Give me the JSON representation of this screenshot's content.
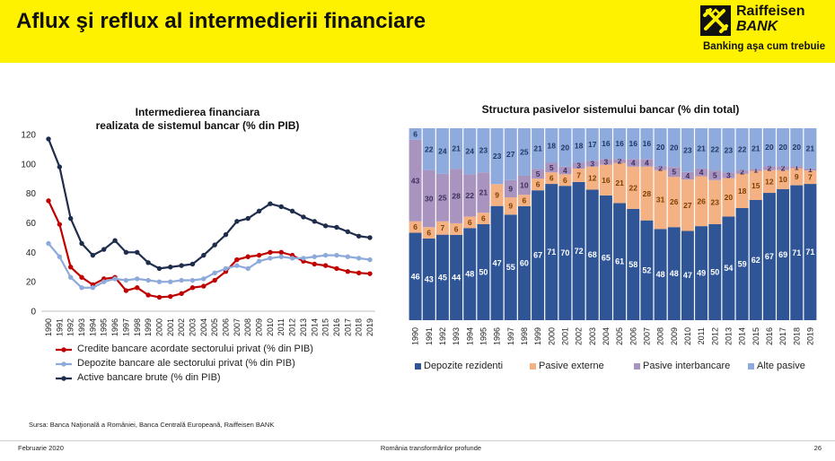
{
  "header": {
    "title": "Aflux şi reflux al intermedierii financiare",
    "bank_name_line1": "Raiffeisen",
    "bank_name_line2": "BANK",
    "tagline": "Banking aşa cum trebuie"
  },
  "colors": {
    "header_bg": "#fff200",
    "line_red": "#c00000",
    "line_light_blue": "#8eaadb",
    "line_dark_navy": "#1f2d4c",
    "bar_deposits": "#2f5597",
    "bar_external": "#f4b183",
    "bar_interbank": "#a993bf",
    "bar_other": "#8faadc"
  },
  "chart_data": [
    {
      "type": "line",
      "title": "Intermedierea financiara realizata de sistemul bancar (% din PIB)",
      "title_line1": "Intermedierea financiara",
      "title_line2": "realizata de sistemul bancar (% din PIB)",
      "x": [
        "1990",
        "1991",
        "1992",
        "1993",
        "1994",
        "1995",
        "1996",
        "1997",
        "1998",
        "1999",
        "2000",
        "2001",
        "2002",
        "2003",
        "2004",
        "2005",
        "2006",
        "2007",
        "2008",
        "2009",
        "2010",
        "2011",
        "2012",
        "2013",
        "2014",
        "2015",
        "2016",
        "2017",
        "2018",
        "2019"
      ],
      "ylim": [
        0,
        120
      ],
      "yticks": [
        "0",
        "20",
        "40",
        "60",
        "80",
        "100",
        "120"
      ],
      "grid": false,
      "legend_position": "bottom",
      "series": [
        {
          "name": "Credite bancare acordate sectorului privat (% din PIB)",
          "color": "#c00000",
          "values": [
            75,
            59,
            30,
            23,
            18,
            22,
            23,
            14,
            16,
            11,
            9.5,
            10,
            12,
            16,
            17,
            21,
            27,
            35,
            37,
            38,
            40,
            40,
            38,
            34,
            32,
            31,
            29,
            27,
            26,
            25.5
          ]
        },
        {
          "name": "Depozite bancare ale sectorului privat (% din PIB)",
          "color": "#8eaadb",
          "values": [
            46,
            37,
            23,
            16,
            16,
            20,
            22,
            21,
            22,
            21,
            20,
            20,
            21,
            21,
            22,
            26,
            29,
            31,
            29,
            34,
            36,
            37,
            36,
            36,
            37,
            38,
            38,
            37,
            36,
            35
          ]
        },
        {
          "name": "Active bancare brute (% din PIB)",
          "color": "#1f2d4c",
          "values": [
            117,
            98,
            63,
            46,
            38,
            42,
            48,
            40,
            40,
            33,
            29,
            30,
            31,
            32,
            38,
            45,
            52,
            61,
            63,
            68,
            73,
            71,
            68,
            64,
            61,
            58,
            57,
            54,
            51,
            50
          ]
        }
      ]
    },
    {
      "type": "bar",
      "stacked": true,
      "percent": true,
      "title": "Structura pasivelor sistemului bancar (% din total)",
      "categories": [
        "1990",
        "1991",
        "1992",
        "1993",
        "1994",
        "1995",
        "1996",
        "1997",
        "1998",
        "1999",
        "2000",
        "2001",
        "2002",
        "2003",
        "2004",
        "2005",
        "2006",
        "2007",
        "2008",
        "2009",
        "2010",
        "2011",
        "2012",
        "2013",
        "2014",
        "2015",
        "2016",
        "2017",
        "2018",
        "2019"
      ],
      "ylim": [
        0,
        100
      ],
      "legend_position": "bottom",
      "series": [
        {
          "name": "Depozite rezidenti",
          "color": "#2f5597",
          "values": [
            46,
            43,
            45,
            44,
            48,
            50,
            47,
            55,
            60,
            67,
            71,
            70,
            72,
            68,
            65,
            61,
            58,
            52,
            48,
            48,
            47,
            49,
            50,
            54,
            59,
            62,
            67,
            69,
            71,
            71
          ]
        },
        {
          "name": "Pasive externe",
          "color": "#f4b183",
          "values": [
            6,
            6,
            7,
            6,
            6,
            6,
            9,
            9,
            6,
            6,
            6,
            6,
            7,
            12,
            16,
            21,
            22,
            28,
            31,
            26,
            27,
            26,
            23,
            20,
            18,
            15,
            12,
            10,
            9,
            7
          ]
        },
        {
          "name": "Pasive interbancare",
          "color": "#a993bf",
          "values": [
            43,
            30,
            25,
            28,
            22,
            21,
            null,
            9,
            10,
            5,
            5,
            4,
            3,
            3,
            3,
            2,
            4,
            4,
            2,
            5,
            4,
            4,
            5,
            3,
            2,
            1,
            2,
            2,
            1,
            1
          ]
        },
        {
          "name": "Alte pasive",
          "color": "#8faadc",
          "values": [
            6,
            22,
            24,
            21,
            24,
            23,
            23,
            27,
            25,
            21,
            18,
            20,
            18,
            17,
            16,
            16,
            16,
            16,
            20,
            20,
            23,
            21,
            22,
            23,
            22,
            21,
            20,
            20,
            20,
            21
          ]
        }
      ]
    }
  ],
  "footer": {
    "source": "Sursa: Banca Naţională a României, Banca Centrală Europeană, Raiffeisen BANK",
    "date": "Februarie 2020",
    "center": "România transformărilor profunde",
    "page": "26"
  }
}
